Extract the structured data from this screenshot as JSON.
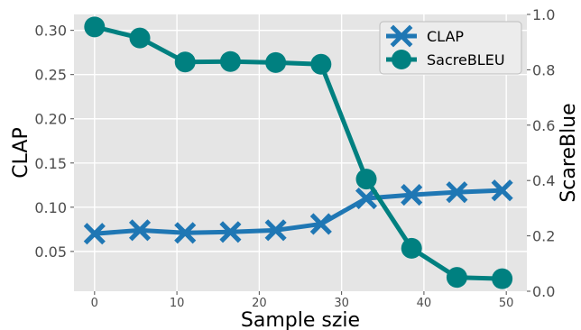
{
  "chart_data": {
    "type": "line",
    "title": "",
    "xlabel": "Sample szie",
    "ylabel": "CLAP",
    "y2label": "ScareBlue",
    "x": [
      0,
      5.5,
      11,
      16.5,
      22,
      27.5,
      33,
      38.5,
      44,
      49.5
    ],
    "xlim": [
      -2.5,
      52.5
    ],
    "ylim": [
      0.005,
      0.318
    ],
    "y2lim": [
      0.0,
      1.0
    ],
    "xticks": [
      0,
      10,
      20,
      30,
      40,
      50
    ],
    "yticks": [
      0.05,
      0.1,
      0.15,
      0.2,
      0.25,
      0.3
    ],
    "y2ticks": [
      0.0,
      0.2,
      0.4,
      0.6,
      0.8,
      1.0
    ],
    "xtick_labels": [
      "0",
      "10",
      "20",
      "30",
      "40",
      "50"
    ],
    "ytick_labels": [
      "0.05",
      "0.10",
      "0.15",
      "0.20",
      "0.25",
      "0.30"
    ],
    "y2tick_labels": [
      "0.0",
      "0.2",
      "0.4",
      "0.6",
      "0.8",
      "1.0"
    ],
    "grid": true,
    "legend_position": "top-right",
    "series": [
      {
        "name": "CLAP",
        "axis": "left",
        "marker": "x",
        "color": "#1f77b4",
        "values": [
          0.07,
          0.074,
          0.071,
          0.072,
          0.074,
          0.081,
          0.11,
          0.114,
          0.117,
          0.119
        ]
      },
      {
        "name": "SacreBLEU",
        "axis": "right",
        "marker": "circle",
        "color": "#008080",
        "values": [
          0.955,
          0.915,
          0.828,
          0.83,
          0.826,
          0.82,
          0.405,
          0.155,
          0.05,
          0.045
        ]
      }
    ]
  }
}
